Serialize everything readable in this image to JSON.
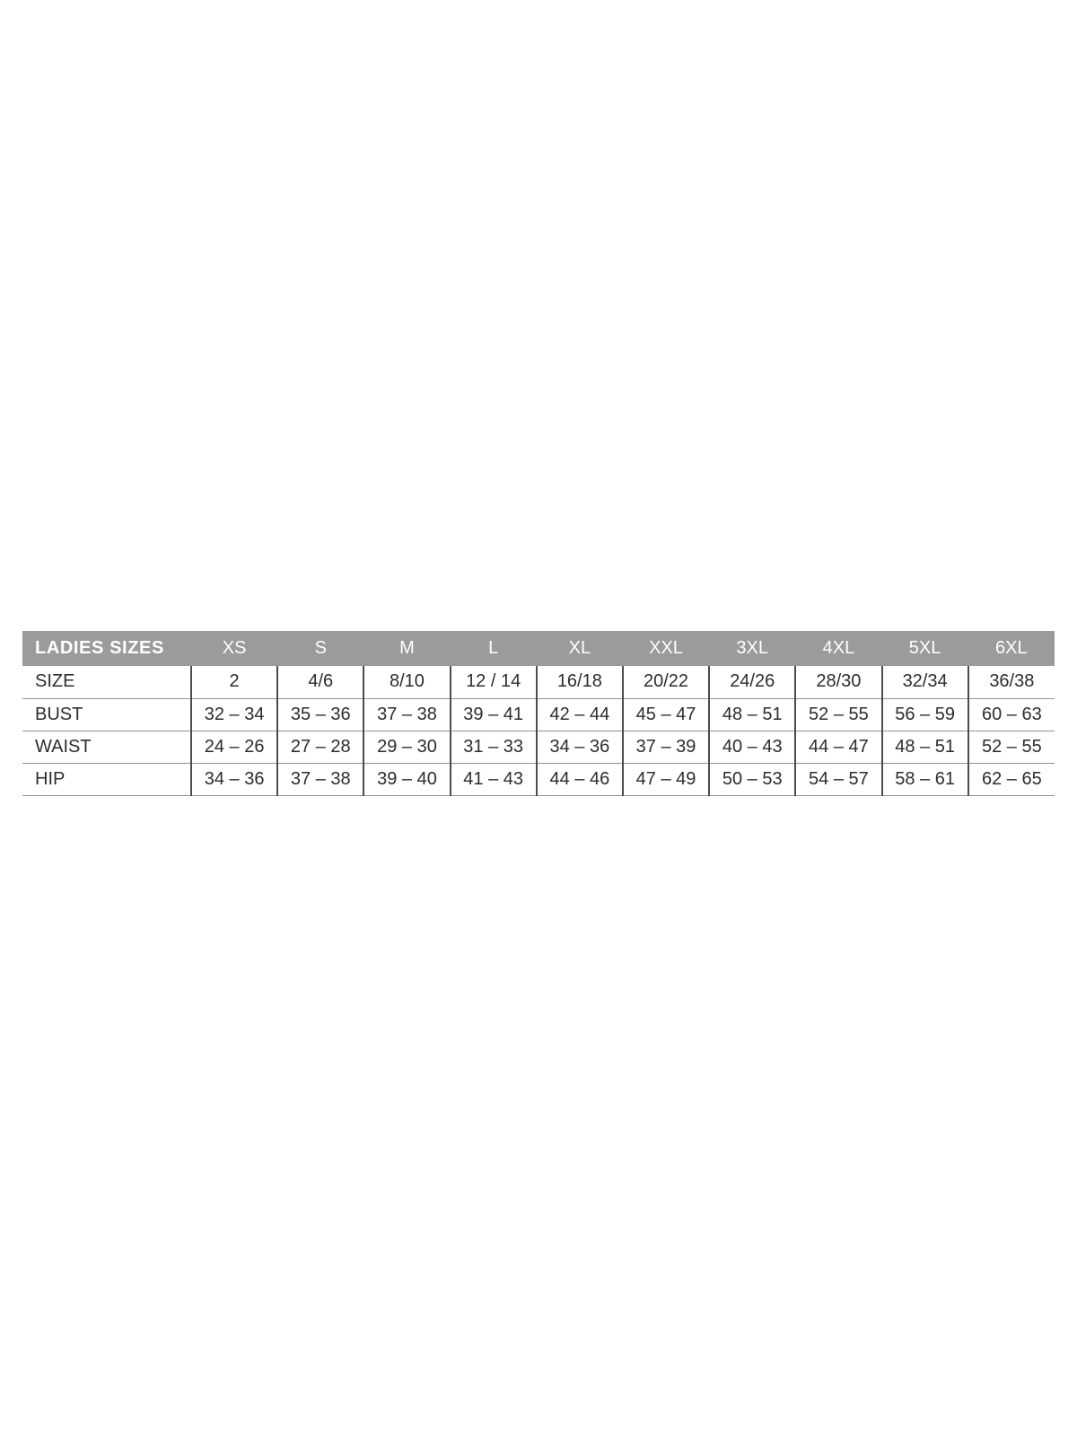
{
  "colors": {
    "page_background": "#ffffff",
    "header_background": "#9b9b9d",
    "header_text": "#ffffff",
    "cell_text": "#2d2d2f",
    "vertical_divider": "#4c4c4e",
    "horizontal_divider": "#929294"
  },
  "chart_data": {
    "type": "table",
    "title": "LADIES SIZES",
    "columns": [
      "XS",
      "S",
      "M",
      "L",
      "XL",
      "XXL",
      "3XL",
      "4XL",
      "5XL",
      "6XL"
    ],
    "rows": [
      {
        "label": "SIZE",
        "values": [
          "2",
          "4/6",
          "8/10",
          "12 / 14",
          "16/18",
          "20/22",
          "24/26",
          "28/30",
          "32/34",
          "36/38"
        ]
      },
      {
        "label": "BUST",
        "values": [
          "32 – 34",
          "35 – 36",
          "37 – 38",
          "39 – 41",
          "42 – 44",
          "45 – 47",
          "48 – 51",
          "52 – 55",
          "56 – 59",
          "60 – 63"
        ]
      },
      {
        "label": "WAIST",
        "values": [
          "24 – 26",
          "27 – 28",
          "29 – 30",
          "31 – 33",
          "34 – 36",
          "37 – 39",
          "40 – 43",
          "44 – 47",
          "48 – 51",
          "52 – 55"
        ]
      },
      {
        "label": "HIP",
        "values": [
          "34 – 36",
          "37 – 38",
          "39 – 40",
          "41 – 43",
          "44 – 46",
          "47 – 49",
          "50 – 53",
          "54 – 57",
          "58 – 61",
          "62 – 65"
        ]
      }
    ]
  }
}
